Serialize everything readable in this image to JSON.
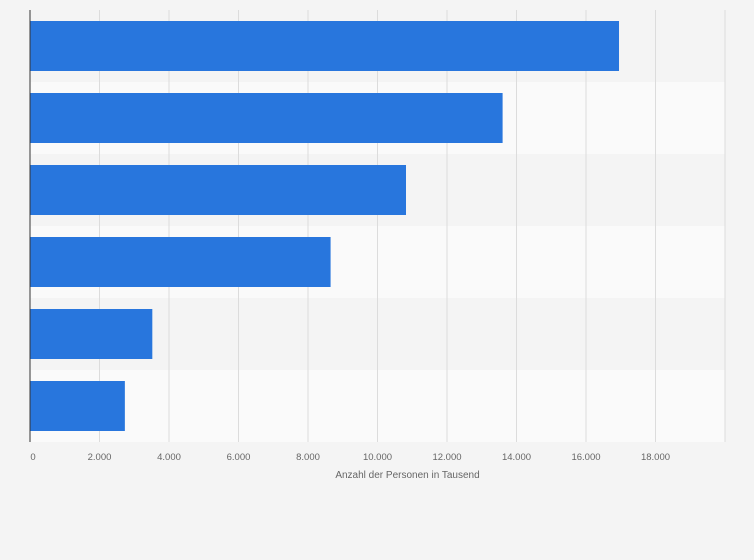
{
  "chart_data": {
    "type": "bar",
    "orientation": "horizontal",
    "title": "",
    "categories": [
      "",
      "",
      "",
      "",
      "",
      ""
    ],
    "values": [
      16950,
      13600,
      10820,
      8650,
      3520,
      2730
    ],
    "xlabel": "Anzahl der Personen in Tausend",
    "ylabel": "",
    "xlim": [
      0,
      20000
    ],
    "xticks": [
      0,
      2000,
      4000,
      6000,
      8000,
      10000,
      12000,
      14000,
      16000,
      18000
    ],
    "xtick_labels": [
      "0",
      "2.000",
      "4.000",
      "6.000",
      "8.000",
      "10.000",
      "12.000",
      "14.000",
      "16.000",
      "18.000"
    ],
    "grid": true,
    "colors": {
      "bar": "#2876dd",
      "band_even": "#f4f4f4",
      "band_odd": "#fafafa",
      "grid": "#dcdcdc",
      "axis": "#333333",
      "text": "#666666"
    }
  }
}
